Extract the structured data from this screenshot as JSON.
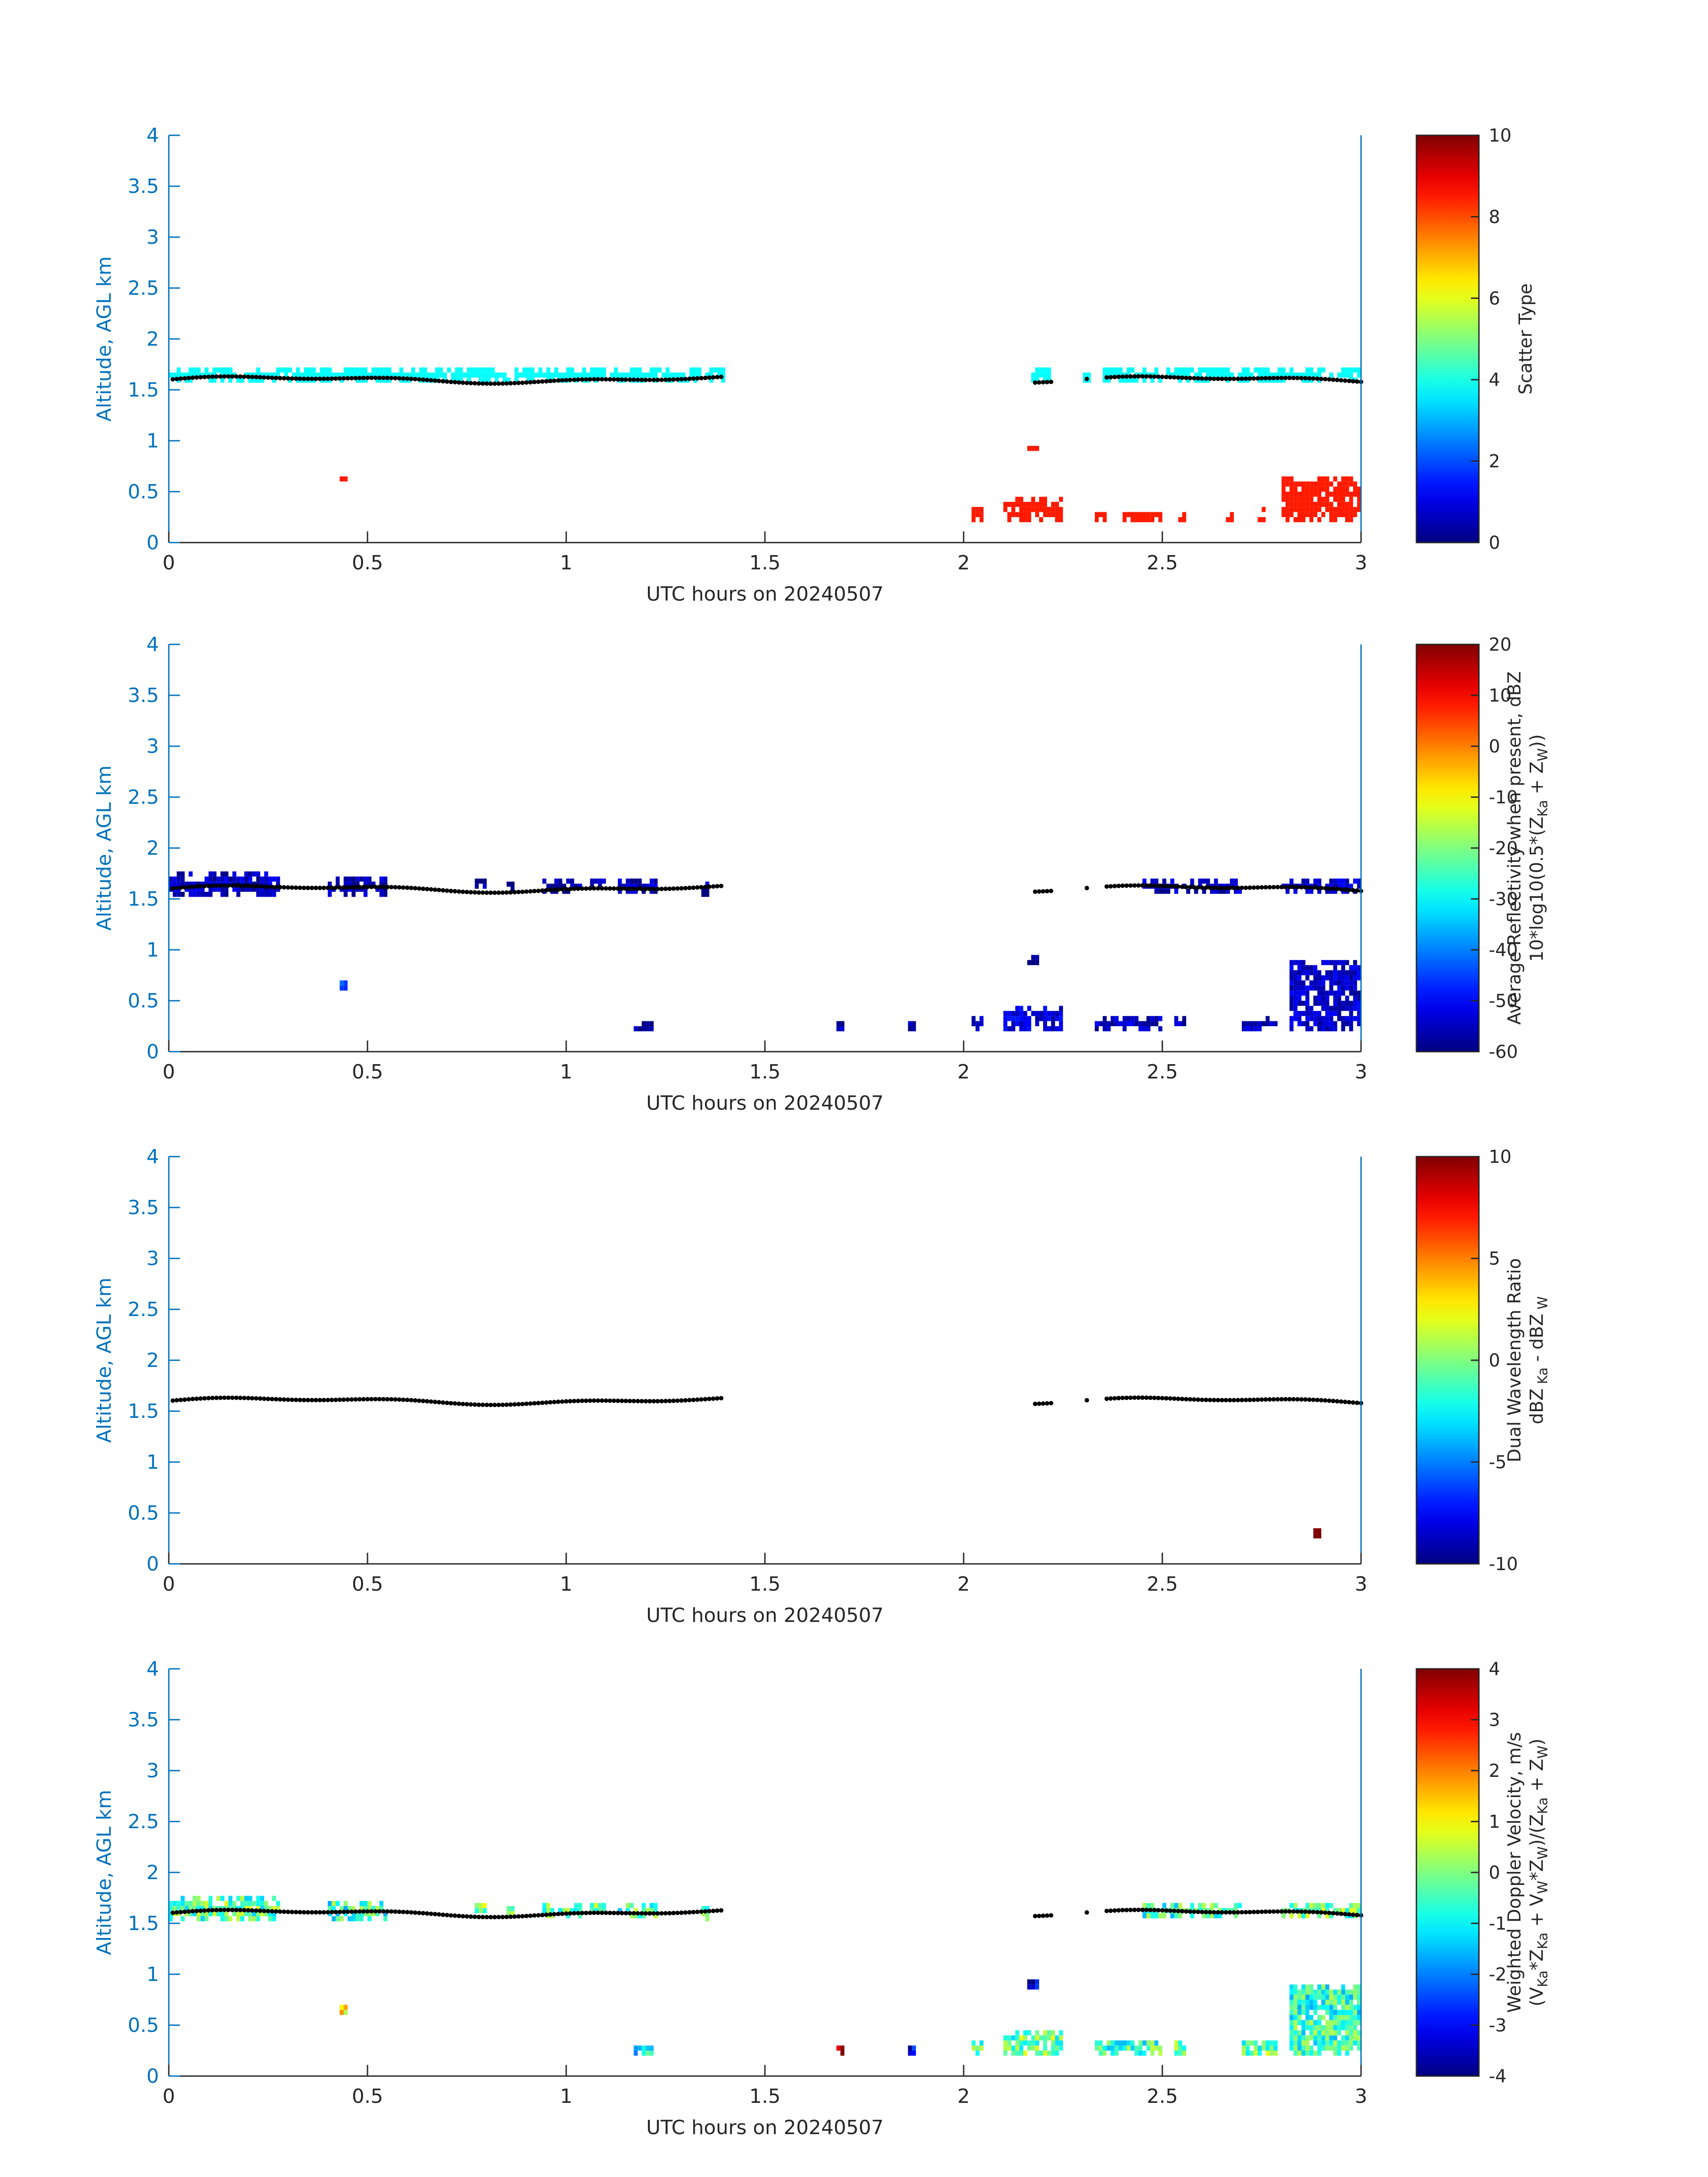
{
  "figure": {
    "panels": [
      {
        "xlabel": "UTC hours on 20240507",
        "ylabel": "Altitude, AGL km",
        "cbar_label_lines": [
          [
            {
              "t": "Scatter Type"
            }
          ]
        ]
      },
      {
        "xlabel": "UTC hours on 20240507",
        "ylabel": "Altitude, AGL km",
        "cbar_label_lines": [
          [
            {
              "t": "Average Reflectivity when present, dBZ"
            }
          ],
          [
            {
              "t": "10*log10(0.5*(Z"
            },
            {
              "t": "Ka",
              "sub": true
            },
            {
              "t": " + Z"
            },
            {
              "t": "W",
              "sub": true
            },
            {
              "t": "))"
            }
          ]
        ]
      },
      {
        "xlabel": "UTC hours on 20240507",
        "ylabel": "Altitude, AGL km",
        "cbar_label_lines": [
          [
            {
              "t": "Dual Wavelength Ratio"
            }
          ],
          [
            {
              "t": "dBZ"
            },
            {
              "t": " Ka",
              "sub": true
            },
            {
              "t": " - dBZ"
            },
            {
              "t": " W",
              "sub": true
            }
          ]
        ]
      },
      {
        "xlabel": "UTC hours on 20240507",
        "ylabel": "Altitude, AGL km",
        "cbar_label_lines": [
          [
            {
              "t": "Weighted Doppler Velocity, m/s"
            }
          ],
          [
            {
              "t": "(V"
            },
            {
              "t": "Ka",
              "sub": true
            },
            {
              "t": "*Z"
            },
            {
              "t": "Ka",
              "sub": true
            },
            {
              "t": " + V"
            },
            {
              "t": "W",
              "sub": true
            },
            {
              "t": "*Z"
            },
            {
              "t": "W",
              "sub": true
            },
            {
              "t": ")/(Z"
            },
            {
              "t": "Ka",
              "sub": true
            },
            {
              "t": " + Z"
            },
            {
              "t": "W",
              "sub": true
            },
            {
              "t": ")"
            }
          ]
        ]
      }
    ]
  },
  "chart_data": [
    {
      "type": "heatmap",
      "colormap": "jet",
      "xlabel": "UTC hours on 20240507",
      "ylabel": "Altitude, AGL km",
      "xlim": [
        0,
        3
      ],
      "ylim": [
        0,
        4
      ],
      "xticks": [
        "0",
        "0.5",
        "1",
        "1.5",
        "2",
        "2.5",
        "3"
      ],
      "yticks": [
        "0",
        "0.5",
        "1",
        "1.5",
        "2",
        "2.5",
        "3",
        "3.5",
        "4"
      ],
      "colorbar": {
        "label": "Scatter Type",
        "range": [
          0,
          10
        ],
        "ticks": [
          "0",
          "2",
          "4",
          "6",
          "8",
          "10"
        ]
      },
      "cloud_base_points": "black dots near 1.6 km",
      "regions": [
        {
          "x": [
            0.0,
            1.4
          ],
          "y": [
            1.57,
            1.7
          ],
          "value": 3.8
        },
        {
          "x": [
            2.17,
            2.22
          ],
          "y": [
            1.57,
            1.7
          ],
          "value": 3.8
        },
        {
          "x": [
            2.3,
            2.32
          ],
          "y": [
            1.57,
            1.68
          ],
          "value": 3.8
        },
        {
          "x": [
            2.35,
            3.0
          ],
          "y": [
            1.57,
            1.7
          ],
          "value": 3.8
        },
        {
          "x": [
            0.43,
            0.45
          ],
          "y": [
            0.6,
            0.65
          ],
          "value": 8.5
        },
        {
          "x": [
            2.16,
            2.19
          ],
          "y": [
            0.9,
            0.95
          ],
          "value": 8.5
        },
        {
          "x": [
            2.02,
            2.05
          ],
          "y": [
            0.2,
            0.35
          ],
          "value": 8.5
        },
        {
          "x": [
            2.1,
            2.25
          ],
          "y": [
            0.2,
            0.45
          ],
          "value": 8.5
        },
        {
          "x": [
            2.33,
            2.36
          ],
          "y": [
            0.2,
            0.3
          ],
          "value": 8.5
        },
        {
          "x": [
            2.4,
            2.5
          ],
          "y": [
            0.2,
            0.3
          ],
          "value": 8.5
        },
        {
          "x": [
            2.54,
            2.56
          ],
          "y": [
            0.2,
            0.3
          ],
          "value": 8.5
        },
        {
          "x": [
            2.66,
            2.68
          ],
          "y": [
            0.2,
            0.3
          ],
          "value": 8.5
        },
        {
          "x": [
            2.74,
            2.76
          ],
          "y": [
            0.2,
            0.35
          ],
          "value": 8.5
        },
        {
          "x": [
            2.8,
            3.0
          ],
          "y": [
            0.2,
            0.65
          ],
          "value": 8.5
        }
      ]
    },
    {
      "type": "heatmap",
      "colormap": "jet",
      "xlabel": "UTC hours on 20240507",
      "ylabel": "Altitude, AGL km",
      "xlim": [
        0,
        3
      ],
      "ylim": [
        0,
        4
      ],
      "xticks": [
        "0",
        "0.5",
        "1",
        "1.5",
        "2",
        "2.5",
        "3"
      ],
      "yticks": [
        "0",
        "0.5",
        "1",
        "1.5",
        "2",
        "2.5",
        "3",
        "3.5",
        "4"
      ],
      "colorbar": {
        "label": "Average Reflectivity when present, dBZ",
        "range": [
          -60,
          20
        ],
        "ticks": [
          "-60",
          "-50",
          "-40",
          "-30",
          "-20",
          "-10",
          "0",
          "10",
          "20"
        ]
      },
      "cloud_base_points": "black dots near 1.6 km",
      "regions": [
        {
          "x": [
            0.0,
            0.28
          ],
          "y": [
            1.52,
            1.75
          ],
          "value": -55
        },
        {
          "x": [
            0.4,
            0.55
          ],
          "y": [
            1.52,
            1.72
          ],
          "value": -56
        },
        {
          "x": [
            0.77,
            0.8
          ],
          "y": [
            1.6,
            1.72
          ],
          "value": -58
        },
        {
          "x": [
            0.85,
            0.87
          ],
          "y": [
            1.57,
            1.68
          ],
          "value": -58
        },
        {
          "x": [
            0.94,
            1.04
          ],
          "y": [
            1.55,
            1.72
          ],
          "value": -57
        },
        {
          "x": [
            1.06,
            1.1
          ],
          "y": [
            1.6,
            1.7
          ],
          "value": -55
        },
        {
          "x": [
            1.13,
            1.23
          ],
          "y": [
            1.55,
            1.7
          ],
          "value": -56
        },
        {
          "x": [
            1.34,
            1.36
          ],
          "y": [
            1.52,
            1.68
          ],
          "value": -58
        },
        {
          "x": [
            2.45,
            2.7
          ],
          "y": [
            1.55,
            1.72
          ],
          "value": -55
        },
        {
          "x": [
            2.8,
            3.0
          ],
          "y": [
            1.55,
            1.72
          ],
          "value": -54
        },
        {
          "x": [
            0.43,
            0.45
          ],
          "y": [
            0.6,
            0.72
          ],
          "value": -45
        },
        {
          "x": [
            1.17,
            1.22
          ],
          "y": [
            0.2,
            0.3
          ],
          "value": -57
        },
        {
          "x": [
            1.68,
            1.7
          ],
          "y": [
            0.2,
            0.3
          ],
          "value": -58
        },
        {
          "x": [
            1.86,
            1.88
          ],
          "y": [
            0.2,
            0.3
          ],
          "value": -58
        },
        {
          "x": [
            2.02,
            2.05
          ],
          "y": [
            0.2,
            0.35
          ],
          "value": -56
        },
        {
          "x": [
            2.1,
            2.25
          ],
          "y": [
            0.2,
            0.45
          ],
          "value": -53
        },
        {
          "x": [
            2.16,
            2.19
          ],
          "y": [
            0.85,
            0.95
          ],
          "value": -58
        },
        {
          "x": [
            2.33,
            2.5
          ],
          "y": [
            0.2,
            0.35
          ],
          "value": -55
        },
        {
          "x": [
            2.53,
            2.56
          ],
          "y": [
            0.2,
            0.35
          ],
          "value": -57
        },
        {
          "x": [
            2.7,
            2.79
          ],
          "y": [
            0.2,
            0.35
          ],
          "value": -55
        },
        {
          "x": [
            2.82,
            3.0
          ],
          "y": [
            0.2,
            0.9
          ],
          "value": -54
        }
      ]
    },
    {
      "type": "heatmap",
      "colormap": "jet",
      "xlabel": "UTC hours on 20240507",
      "ylabel": "Altitude, AGL km",
      "xlim": [
        0,
        3
      ],
      "ylim": [
        0,
        4
      ],
      "xticks": [
        "0",
        "0.5",
        "1",
        "1.5",
        "2",
        "2.5",
        "3"
      ],
      "yticks": [
        "0",
        "0.5",
        "1",
        "1.5",
        "2",
        "2.5",
        "3",
        "3.5",
        "4"
      ],
      "colorbar": {
        "label": "Dual Wavelength Ratio",
        "range": [
          -10,
          10
        ],
        "ticks": [
          "-10",
          "-5",
          "0",
          "5",
          "10"
        ]
      },
      "cloud_base_points": "black dots near 1.6 km",
      "regions": [
        {
          "x": [
            2.88,
            2.9
          ],
          "y": [
            0.25,
            0.42
          ],
          "value": 10
        }
      ]
    },
    {
      "type": "heatmap",
      "colormap": "jet",
      "xlabel": "UTC hours on 20240507",
      "ylabel": "Altitude, AGL km",
      "xlim": [
        0,
        3
      ],
      "ylim": [
        0,
        4
      ],
      "xticks": [
        "0",
        "0.5",
        "1",
        "1.5",
        "2",
        "2.5",
        "3"
      ],
      "yticks": [
        "0",
        "0.5",
        "1",
        "1.5",
        "2",
        "2.5",
        "3",
        "3.5",
        "4"
      ],
      "colorbar": {
        "label": "Weighted Doppler Velocity, m/s",
        "range": [
          -4,
          4
        ],
        "ticks": [
          "-4",
          "-3",
          "-2",
          "-1",
          "0",
          "1",
          "2",
          "3",
          "4"
        ]
      },
      "cloud_base_points": "black dots near 1.6 km",
      "regions": [
        {
          "x": [
            0.0,
            0.28
          ],
          "y": [
            1.52,
            1.75
          ],
          "value": -0.3
        },
        {
          "x": [
            0.4,
            0.55
          ],
          "y": [
            1.52,
            1.72
          ],
          "value": -0.6
        },
        {
          "x": [
            0.77,
            0.8
          ],
          "y": [
            1.6,
            1.72
          ],
          "value": 0.2
        },
        {
          "x": [
            0.85,
            0.87
          ],
          "y": [
            1.57,
            1.68
          ],
          "value": 0.0
        },
        {
          "x": [
            0.94,
            1.04
          ],
          "y": [
            1.55,
            1.72
          ],
          "value": -0.4
        },
        {
          "x": [
            1.06,
            1.1
          ],
          "y": [
            1.6,
            1.7
          ],
          "value": -0.2
        },
        {
          "x": [
            1.13,
            1.23
          ],
          "y": [
            1.55,
            1.7
          ],
          "value": -0.4
        },
        {
          "x": [
            1.34,
            1.36
          ],
          "y": [
            1.52,
            1.68
          ],
          "value": -0.3
        },
        {
          "x": [
            2.45,
            2.7
          ],
          "y": [
            1.55,
            1.72
          ],
          "value": -0.5
        },
        {
          "x": [
            2.8,
            3.0
          ],
          "y": [
            1.55,
            1.72
          ],
          "value": -0.2
        },
        {
          "x": [
            0.43,
            0.45
          ],
          "y": [
            0.6,
            0.72
          ],
          "value": 0.8
        },
        {
          "x": [
            1.17,
            1.22
          ],
          "y": [
            0.2,
            0.3
          ],
          "value": -1.2
        },
        {
          "x": [
            1.68,
            1.7
          ],
          "y": [
            0.2,
            0.3
          ],
          "value": 4.0
        },
        {
          "x": [
            1.86,
            1.88
          ],
          "y": [
            0.2,
            0.3
          ],
          "value": -2.8
        },
        {
          "x": [
            2.02,
            2.05
          ],
          "y": [
            0.2,
            0.35
          ],
          "value": -0.2
        },
        {
          "x": [
            2.1,
            2.25
          ],
          "y": [
            0.2,
            0.45
          ],
          "value": -0.2
        },
        {
          "x": [
            2.16,
            2.19
          ],
          "y": [
            0.85,
            0.95
          ],
          "value": -3.5
        },
        {
          "x": [
            2.33,
            2.5
          ],
          "y": [
            0.2,
            0.35
          ],
          "value": -0.5
        },
        {
          "x": [
            2.53,
            2.56
          ],
          "y": [
            0.2,
            0.35
          ],
          "value": 0.0
        },
        {
          "x": [
            2.7,
            2.79
          ],
          "y": [
            0.2,
            0.35
          ],
          "value": -0.2
        },
        {
          "x": [
            2.82,
            3.0
          ],
          "y": [
            0.2,
            0.9
          ],
          "value": -0.6
        }
      ]
    }
  ]
}
